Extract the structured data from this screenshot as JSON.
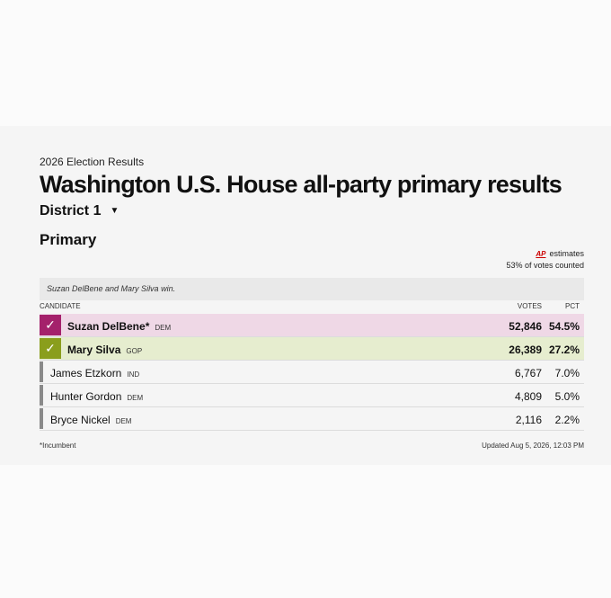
{
  "kicker": "2026 Election Results",
  "title": "Washington U.S. House all-party primary results",
  "district": {
    "label": "District 1",
    "icon": "caret-down-icon"
  },
  "race_label": "Primary",
  "estimate": {
    "ap": "AP",
    "label": "estimates",
    "counted": "53% of votes counted"
  },
  "summary": "Suzan DelBene and Mary Silva win.",
  "columns": {
    "candidate": "CANDIDATE",
    "votes": "VOTES",
    "pct": "PCT"
  },
  "candidates": [
    {
      "name": "Suzan DelBene*",
      "party": "DEM",
      "votes": "52,846",
      "pct": "54.5%",
      "winner": true,
      "row_color": "#efd8e6",
      "mark_color": "#a4216b"
    },
    {
      "name": "Mary Silva",
      "party": "GOP",
      "votes": "26,389",
      "pct": "27.2%",
      "winner": true,
      "row_color": "#e6edcf",
      "mark_color": "#8a9e1c"
    },
    {
      "name": "James Etzkorn",
      "party": "IND",
      "votes": "6,767",
      "pct": "7.0%",
      "winner": false
    },
    {
      "name": "Hunter Gordon",
      "party": "DEM",
      "votes": "4,809",
      "pct": "5.0%",
      "winner": false
    },
    {
      "name": "Bryce Nickel",
      "party": "DEM",
      "votes": "2,116",
      "pct": "2.2%",
      "winner": false
    }
  ],
  "footer": {
    "incumbent": "*Incumbent",
    "updated": "Updated Aug 5, 2026, 12:03 PM"
  }
}
